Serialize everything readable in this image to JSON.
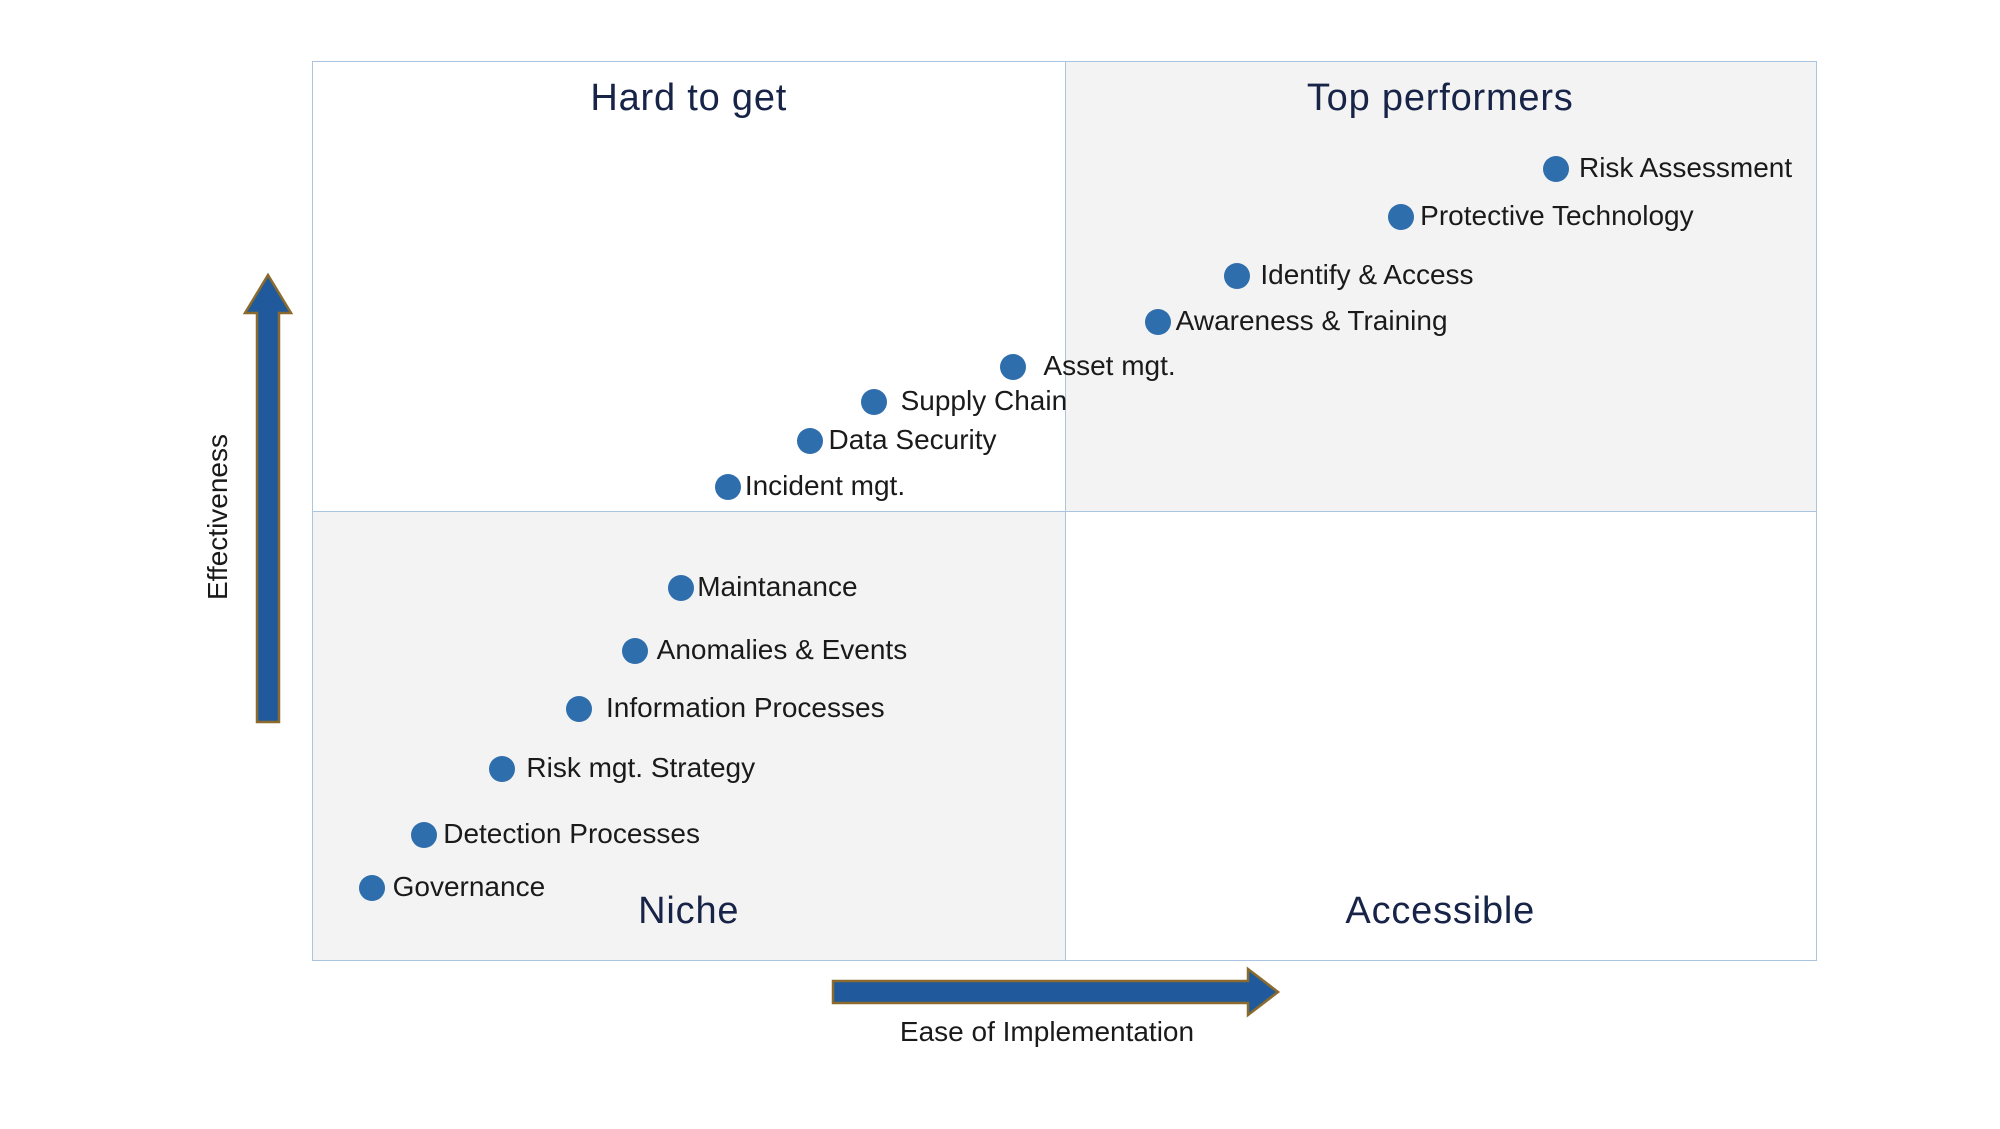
{
  "page": {
    "background": "#ffffff"
  },
  "chart_data": {
    "type": "scatter",
    "variant": "quadrant-matrix",
    "title": "",
    "xlabel": "Ease of Implementation",
    "ylabel": "Effectiveness",
    "xlim": [
      0,
      100
    ],
    "ylim": [
      0,
      100
    ],
    "grid": false,
    "legend": false,
    "quadrants": {
      "top_left": "Hard to get",
      "top_right": "Top performers",
      "bottom_left": "Niche",
      "bottom_right": "Accessible"
    },
    "points": [
      {
        "label": "Risk Assessment",
        "x": 82.7,
        "y": 88.1,
        "label_gap": 10
      },
      {
        "label": "Protective Technology",
        "x": 72.4,
        "y": 82.7,
        "label_gap": 6
      },
      {
        "label": "Identify & Access",
        "x": 61.5,
        "y": 76.2,
        "label_gap": 10
      },
      {
        "label": "Awareness & Training",
        "x": 56.2,
        "y": 71.0,
        "label_gap": 5
      },
      {
        "label": "Asset mgt.",
        "x": 46.6,
        "y": 66.0,
        "label_gap": 17
      },
      {
        "label": "Supply Chain",
        "x": 37.3,
        "y": 62.1,
        "label_gap": 14
      },
      {
        "label": "Data Security",
        "x": 33.1,
        "y": 57.8,
        "label_gap": 5
      },
      {
        "label": "Incident mgt.",
        "x": 27.6,
        "y": 52.7,
        "label_gap": 4
      },
      {
        "label": "Maintanance",
        "x": 24.5,
        "y": 41.4,
        "label_gap": 3
      },
      {
        "label": "Anomalies & Events",
        "x": 21.4,
        "y": 34.4,
        "label_gap": 9
      },
      {
        "label": "Information Processes",
        "x": 17.7,
        "y": 27.9,
        "label_gap": 14
      },
      {
        "label": "Risk mgt. Strategy",
        "x": 12.6,
        "y": 21.3,
        "label_gap": 11
      },
      {
        "label": "Detection Processes",
        "x": 7.4,
        "y": 13.9,
        "label_gap": 6
      },
      {
        "label": "Governance",
        "x": 3.9,
        "y": 8.0,
        "label_gap": 8
      }
    ],
    "colors": {
      "dot_fill": "#2f6ead",
      "arrow_fill": "#20599c",
      "arrow_stroke": "#8a6b2d",
      "quadrant_title": "#172448",
      "plot_border": "#a9c5e2",
      "quadrant_shade": "#f3f3f3",
      "label_text": "#1a1a1a"
    }
  }
}
